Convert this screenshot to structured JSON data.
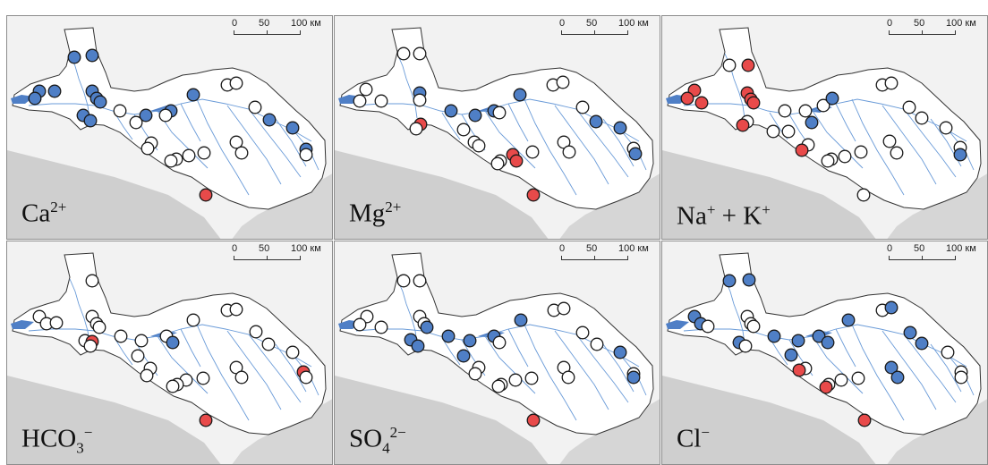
{
  "scale_bar": {
    "labels": [
      "0",
      "50",
      "100 км"
    ]
  },
  "legend_colors": {
    "high": "#e84a4a",
    "medium": "#4f7fc6",
    "low": "#ffffff"
  },
  "panels": [
    {
      "id": "ca",
      "label_base": "Ca",
      "label_sup": "2+",
      "label_sub": "",
      "points": [
        [
          75,
          46,
          "b"
        ],
        [
          95,
          44,
          "b"
        ],
        [
          36,
          84,
          "b"
        ],
        [
          31,
          92,
          "b"
        ],
        [
          53,
          84,
          "b"
        ],
        [
          95,
          84,
          "b"
        ],
        [
          100,
          92,
          "b"
        ],
        [
          104,
          96,
          "b"
        ],
        [
          85,
          111,
          "b"
        ],
        [
          93,
          117,
          "b"
        ],
        [
          155,
          111,
          "b"
        ],
        [
          183,
          106,
          "b"
        ],
        [
          208,
          88,
          "b"
        ],
        [
          126,
          106,
          "w"
        ],
        [
          177,
          111,
          "w"
        ],
        [
          144,
          119,
          "w"
        ],
        [
          246,
          77,
          "w"
        ],
        [
          256,
          75,
          "w"
        ],
        [
          277,
          102,
          "w"
        ],
        [
          293,
          116,
          "b"
        ],
        [
          319,
          125,
          "b"
        ],
        [
          161,
          142,
          "w"
        ],
        [
          157,
          148,
          "w"
        ],
        [
          256,
          141,
          "w"
        ],
        [
          262,
          153,
          "w"
        ],
        [
          334,
          149,
          "b"
        ],
        [
          334,
          155,
          "w"
        ],
        [
          220,
          153,
          "w"
        ],
        [
          203,
          156,
          "w"
        ],
        [
          189,
          160,
          "w"
        ],
        [
          183,
          162,
          "w"
        ],
        [
          222,
          200,
          "r"
        ]
      ]
    },
    {
      "id": "mg",
      "label_base": "Mg",
      "label_sup": "2+",
      "label_sub": "",
      "points": [
        [
          77,
          42,
          "w"
        ],
        [
          95,
          42,
          "w"
        ],
        [
          35,
          82,
          "w"
        ],
        [
          28,
          95,
          "w"
        ],
        [
          52,
          95,
          "w"
        ],
        [
          95,
          86,
          "b"
        ],
        [
          95,
          94,
          "w"
        ],
        [
          96,
          121,
          "r"
        ],
        [
          91,
          126,
          "w"
        ],
        [
          130,
          106,
          "b"
        ],
        [
          157,
          111,
          "b"
        ],
        [
          178,
          106,
          "b"
        ],
        [
          207,
          88,
          "b"
        ],
        [
          184,
          108,
          "w"
        ],
        [
          144,
          127,
          "w"
        ],
        [
          244,
          77,
          "w"
        ],
        [
          255,
          74,
          "w"
        ],
        [
          277,
          102,
          "w"
        ],
        [
          292,
          118,
          "b"
        ],
        [
          319,
          125,
          "b"
        ],
        [
          156,
          141,
          "w"
        ],
        [
          161,
          145,
          "w"
        ],
        [
          256,
          141,
          "w"
        ],
        [
          262,
          152,
          "w"
        ],
        [
          334,
          148,
          "w"
        ],
        [
          336,
          154,
          "b"
        ],
        [
          221,
          152,
          "w"
        ],
        [
          199,
          155,
          "r"
        ],
        [
          203,
          162,
          "r"
        ],
        [
          185,
          162,
          "w"
        ],
        [
          182,
          165,
          "w"
        ],
        [
          222,
          200,
          "r"
        ]
      ]
    },
    {
      "id": "na",
      "label_base": "Na",
      "label_sup": "+",
      "label_sub": "",
      "label_tail": " + K",
      "label_tail_sup": "+",
      "points": [
        [
          75,
          55,
          "w"
        ],
        [
          96,
          55,
          "r"
        ],
        [
          36,
          83,
          "r"
        ],
        [
          28,
          92,
          "r"
        ],
        [
          44,
          97,
          "r"
        ],
        [
          95,
          86,
          "r"
        ],
        [
          99,
          93,
          "r"
        ],
        [
          102,
          97,
          "r"
        ],
        [
          95,
          118,
          "w"
        ],
        [
          90,
          122,
          "r"
        ],
        [
          137,
          106,
          "w"
        ],
        [
          160,
          106,
          "w"
        ],
        [
          180,
          100,
          "w"
        ],
        [
          190,
          92,
          "b"
        ],
        [
          124,
          129,
          "w"
        ],
        [
          167,
          119,
          "b"
        ],
        [
          141,
          129,
          "w"
        ],
        [
          246,
          77,
          "w"
        ],
        [
          256,
          75,
          "w"
        ],
        [
          276,
          102,
          "w"
        ],
        [
          290,
          114,
          "w"
        ],
        [
          317,
          125,
          "w"
        ],
        [
          163,
          144,
          "w"
        ],
        [
          156,
          150,
          "r"
        ],
        [
          254,
          140,
          "w"
        ],
        [
          262,
          153,
          "w"
        ],
        [
          333,
          147,
          "w"
        ],
        [
          333,
          155,
          "b"
        ],
        [
          222,
          152,
          "w"
        ],
        [
          204,
          157,
          "w"
        ],
        [
          189,
          160,
          "w"
        ],
        [
          185,
          162,
          "w"
        ],
        [
          225,
          200,
          "w"
        ]
      ]
    },
    {
      "id": "hco3",
      "label_base": "HCO",
      "label_sup": "−",
      "label_sub": "3",
      "points": [
        [
          95,
          44,
          "w"
        ],
        [
          36,
          84,
          "w"
        ],
        [
          44,
          92,
          "w"
        ],
        [
          55,
          91,
          "w"
        ],
        [
          95,
          84,
          "w"
        ],
        [
          100,
          92,
          "w"
        ],
        [
          103,
          96,
          "w"
        ],
        [
          87,
          111,
          "w"
        ],
        [
          95,
          112,
          "r"
        ],
        [
          93,
          117,
          "w"
        ],
        [
          127,
          106,
          "w"
        ],
        [
          150,
          111,
          "w"
        ],
        [
          178,
          106,
          "w"
        ],
        [
          208,
          88,
          "w"
        ],
        [
          185,
          113,
          "b"
        ],
        [
          146,
          128,
          "w"
        ],
        [
          246,
          77,
          "w"
        ],
        [
          256,
          76,
          "w"
        ],
        [
          278,
          101,
          "w"
        ],
        [
          292,
          115,
          "w"
        ],
        [
          319,
          124,
          "w"
        ],
        [
          160,
          142,
          "w"
        ],
        [
          156,
          150,
          "w"
        ],
        [
          256,
          141,
          "w"
        ],
        [
          262,
          152,
          "w"
        ],
        [
          331,
          146,
          "r"
        ],
        [
          334,
          152,
          "w"
        ],
        [
          219,
          153,
          "w"
        ],
        [
          200,
          155,
          "w"
        ],
        [
          190,
          160,
          "w"
        ],
        [
          185,
          162,
          "w"
        ],
        [
          222,
          200,
          "r"
        ]
      ]
    },
    {
      "id": "so4",
      "label_base": "SO",
      "label_sup": "2−",
      "label_sub": "4",
      "points": [
        [
          77,
          44,
          "w"
        ],
        [
          95,
          44,
          "w"
        ],
        [
          36,
          84,
          "w"
        ],
        [
          28,
          93,
          "w"
        ],
        [
          52,
          96,
          "w"
        ],
        [
          95,
          84,
          "w"
        ],
        [
          100,
          92,
          "w"
        ],
        [
          103,
          96,
          "b"
        ],
        [
          85,
          110,
          "b"
        ],
        [
          93,
          117,
          "b"
        ],
        [
          127,
          106,
          "b"
        ],
        [
          151,
          111,
          "b"
        ],
        [
          178,
          106,
          "b"
        ],
        [
          208,
          88,
          "b"
        ],
        [
          184,
          113,
          "w"
        ],
        [
          144,
          128,
          "b"
        ],
        [
          245,
          77,
          "w"
        ],
        [
          256,
          75,
          "w"
        ],
        [
          277,
          102,
          "w"
        ],
        [
          293,
          115,
          "w"
        ],
        [
          319,
          124,
          "b"
        ],
        [
          161,
          141,
          "w"
        ],
        [
          157,
          148,
          "w"
        ],
        [
          256,
          141,
          "w"
        ],
        [
          261,
          152,
          "w"
        ],
        [
          334,
          148,
          "w"
        ],
        [
          334,
          152,
          "b"
        ],
        [
          220,
          153,
          "w"
        ],
        [
          202,
          155,
          "w"
        ],
        [
          186,
          160,
          "w"
        ],
        [
          183,
          162,
          "w"
        ],
        [
          222,
          200,
          "r"
        ]
      ]
    },
    {
      "id": "cl",
      "label_base": "Cl",
      "label_sup": "−",
      "label_sub": "",
      "points": [
        [
          75,
          44,
          "b"
        ],
        [
          97,
          43,
          "b"
        ],
        [
          36,
          84,
          "b"
        ],
        [
          43,
          92,
          "b"
        ],
        [
          51,
          95,
          "w"
        ],
        [
          95,
          84,
          "w"
        ],
        [
          99,
          92,
          "w"
        ],
        [
          102,
          95,
          "w"
        ],
        [
          86,
          113,
          "b"
        ],
        [
          93,
          117,
          "w"
        ],
        [
          125,
          106,
          "b"
        ],
        [
          152,
          111,
          "b"
        ],
        [
          175,
          106,
          "b"
        ],
        [
          208,
          88,
          "b"
        ],
        [
          185,
          113,
          "b"
        ],
        [
          144,
          127,
          "b"
        ],
        [
          246,
          77,
          "w"
        ],
        [
          256,
          74,
          "b"
        ],
        [
          277,
          102,
          "b"
        ],
        [
          290,
          114,
          "b"
        ],
        [
          319,
          124,
          "w"
        ],
        [
          160,
          142,
          "w"
        ],
        [
          153,
          144,
          "r"
        ],
        [
          256,
          141,
          "b"
        ],
        [
          263,
          152,
          "b"
        ],
        [
          334,
          146,
          "w"
        ],
        [
          334,
          152,
          "w"
        ],
        [
          219,
          153,
          "w"
        ],
        [
          200,
          155,
          "w"
        ],
        [
          186,
          160,
          "w"
        ],
        [
          183,
          163,
          "r"
        ],
        [
          226,
          200,
          "r"
        ]
      ]
    }
  ]
}
